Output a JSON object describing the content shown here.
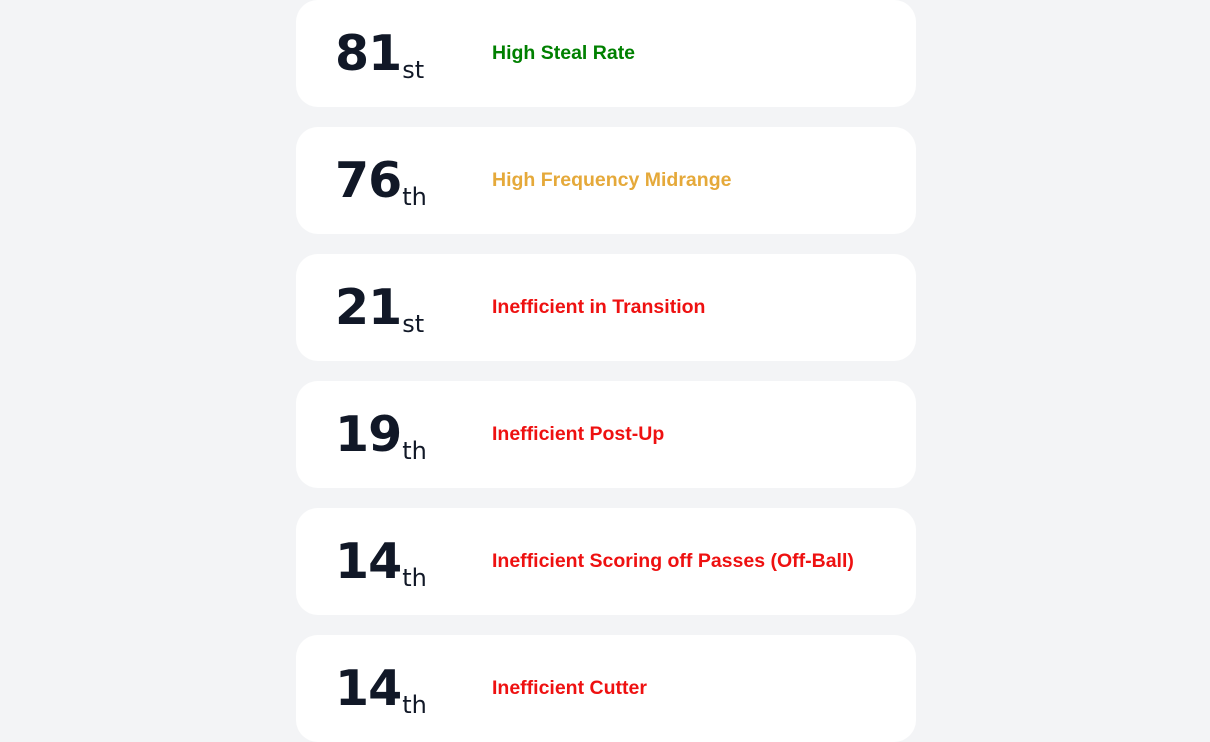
{
  "rankings": [
    {
      "rank": "81",
      "suffix": "st",
      "label": "High Steal Rate",
      "color": "#008000"
    },
    {
      "rank": "76",
      "suffix": "th",
      "label": "High Frequency Midrange",
      "color": "#e5a93a"
    },
    {
      "rank": "21",
      "suffix": "st",
      "label": "Inefficient in Transition",
      "color": "#ee1111"
    },
    {
      "rank": "19",
      "suffix": "th",
      "label": "Inefficient Post-Up",
      "color": "#ee1111"
    },
    {
      "rank": "14",
      "suffix": "th",
      "label": "Inefficient Scoring off Passes (Off-Ball)",
      "color": "#ee1111"
    },
    {
      "rank": "14",
      "suffix": "th",
      "label": "Inefficient Cutter",
      "color": "#ee1111"
    }
  ]
}
